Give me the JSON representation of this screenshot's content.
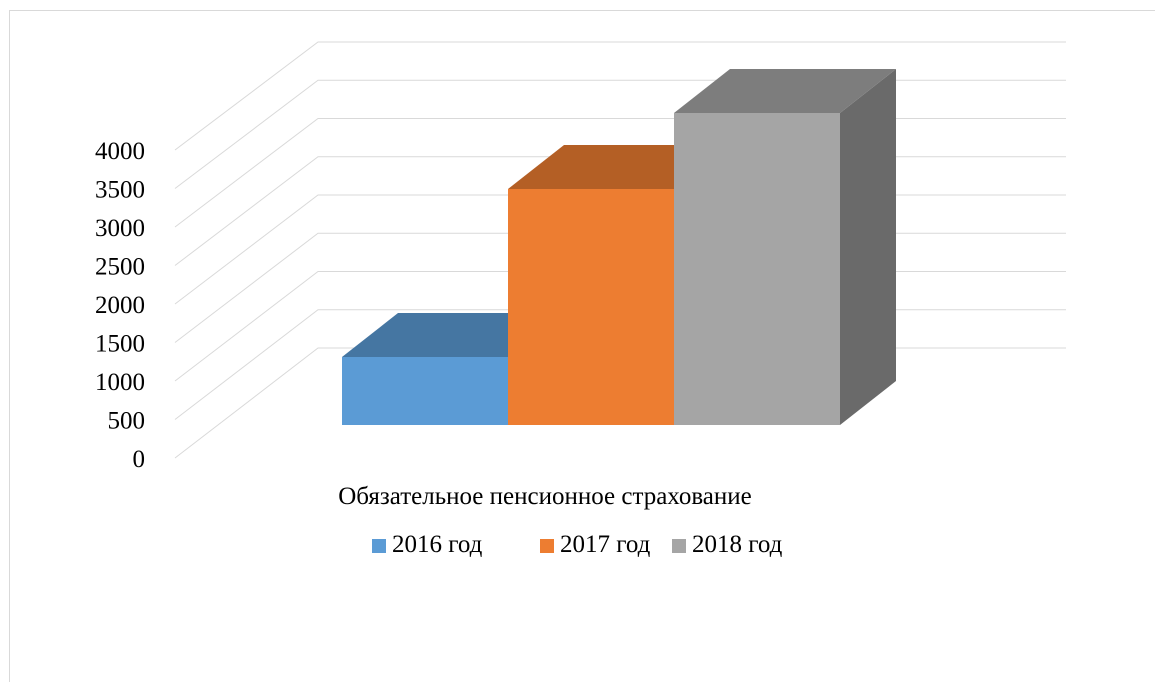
{
  "chart_data": {
    "type": "bar",
    "style": "3d-clustered-column",
    "categories": [
      "Обязательное пенсионное страхование"
    ],
    "series": [
      {
        "name": "2016 год",
        "values": [
          850
        ],
        "color": "#5b9bd5"
      },
      {
        "name": "2017 год",
        "values": [
          2950
        ],
        "color": "#ed7d31"
      },
      {
        "name": "2018 год",
        "values": [
          3900
        ],
        "color": "#a5a5a5"
      }
    ],
    "xlabel": "",
    "ylabel": "",
    "ylim": [
      0,
      4000
    ],
    "yticks": [
      "0",
      "500",
      "1000",
      "1500",
      "2000",
      "2500",
      "3000",
      "3500",
      "4000"
    ],
    "grid": true,
    "legend": "bottom"
  }
}
